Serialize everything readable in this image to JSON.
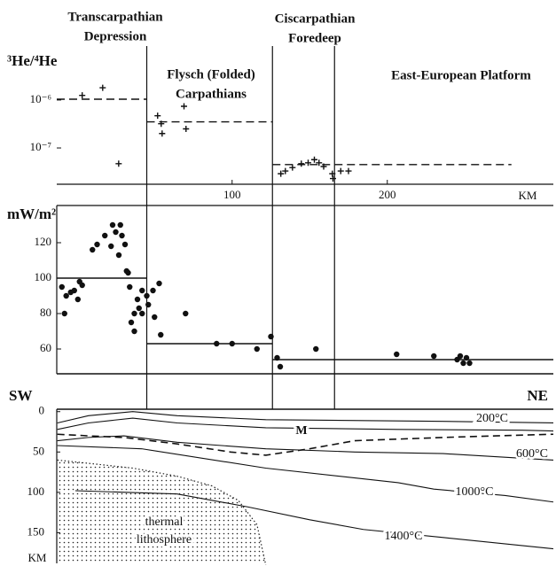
{
  "chart_data": [
    {
      "type": "scatter",
      "marker": "plus",
      "log_y": true,
      "color": "#111111",
      "y_label": "³He/⁴He",
      "x_unit": "KM",
      "xlim": [
        -13,
        307
      ],
      "ylim": [
        1.75e-08,
        9.5e-06
      ],
      "xticks": [
        100,
        200
      ],
      "yticks": [
        {
          "value": 1e-06,
          "label": "10⁻⁶"
        },
        {
          "value": 1e-07,
          "label": "10⁻⁷"
        }
      ],
      "x": [
        3.4,
        16.6,
        26.9,
        52,
        54.3,
        54.9,
        69,
        70.3,
        131.4,
        134.3,
        138.9,
        144.6,
        149,
        153,
        156,
        159,
        164.6,
        165,
        170,
        175
      ],
      "values": [
        1.25e-06,
        1.8e-06,
        4.7e-08,
        4.7e-07,
        3.2e-07,
        2e-07,
        7.4e-07,
        2.5e-07,
        2.9e-08,
        3.3e-08,
        3.9e-08,
        4.7e-08,
        4.9e-08,
        5.7e-08,
        4.9e-08,
        4.1e-08,
        2.9e-08,
        2.3e-08,
        3.3e-08,
        3.3e-08
      ],
      "means": [
        {
          "x": [
            -13,
            45
          ],
          "value": 1.04e-06
        },
        {
          "x": [
            45,
            126
          ],
          "value": 3.5e-07
        },
        {
          "x": [
            126,
            280
          ],
          "value": 4.5e-08
        }
      ]
    },
    {
      "type": "scatter",
      "marker": "dot",
      "color": "#111111",
      "y_label": "mW/m²",
      "xlim": [
        -13,
        307
      ],
      "ylim": [
        46,
        141
      ],
      "yticks": [
        60,
        80,
        100,
        120
      ],
      "x": [
        -9.7,
        -8,
        -6.9,
        -4,
        -1.7,
        0.6,
        1.7,
        3.4,
        10,
        13,
        18,
        22,
        23,
        25,
        27,
        28,
        29,
        31,
        32,
        33,
        34,
        37,
        37,
        35,
        39,
        40,
        42,
        42,
        45,
        46,
        49,
        50,
        53,
        54,
        70,
        90,
        100,
        116,
        125,
        129,
        131,
        154,
        206,
        230,
        245,
        247,
        249,
        251,
        253
      ],
      "values": [
        95,
        80,
        90,
        92,
        93,
        88,
        98,
        96,
        116,
        119,
        124,
        118,
        130,
        126,
        113,
        130,
        124,
        119,
        104,
        103,
        95,
        80,
        70,
        75,
        88,
        83,
        93,
        80,
        90,
        85,
        93,
        78,
        97,
        68,
        80,
        63,
        63,
        60,
        67,
        55,
        50,
        60,
        57,
        56,
        54,
        56,
        52,
        55,
        52
      ],
      "steps": [
        {
          "x": [
            -13,
            45
          ],
          "value": 100
        },
        {
          "x": [
            45,
            126
          ],
          "value": 63
        },
        {
          "x": [
            126,
            307
          ],
          "value": 54
        }
      ]
    },
    {
      "type": "line",
      "invert_y": true,
      "color": "#111111",
      "left_label": "SW",
      "right_label": "NE",
      "y_unit": "KM",
      "xlim": [
        -13,
        307
      ],
      "ylim": [
        -3,
        188
      ],
      "yticks": [
        0,
        50,
        100,
        150
      ],
      "series": [
        {
          "x": [
            -12.6,
            7.4,
            36,
            64.6,
            121.7,
            236,
            307
          ],
          "values": [
            14,
            5,
            0,
            5,
            10,
            12,
            14
          ]
        },
        {
          "name": "200°C",
          "x": [
            -12.6,
            7.4,
            36,
            64.6,
            121.7,
            207,
            287,
            307
          ],
          "values": [
            22,
            14,
            8,
            14,
            20,
            22,
            23,
            24
          ]
        },
        {
          "name": "600°C",
          "x": [
            -12.6,
            7.4,
            30.3,
            64.6,
            121.7,
            179,
            236,
            307
          ],
          "values": [
            36,
            32,
            30,
            38,
            46,
            50,
            52,
            60
          ]
        },
        {
          "name": "M",
          "dashed": true,
          "x": [
            -12.6,
            7.4,
            30.3,
            64.6,
            98.9,
            121.7,
            150,
            179,
            236,
            270,
            307
          ],
          "values": [
            28,
            30,
            32,
            40,
            50,
            54,
            46,
            36,
            32,
            30,
            28
          ]
        },
        {
          "name": "1000°C",
          "x": [
            -12.6,
            41.7,
            121.7,
            207,
            230,
            276,
            307
          ],
          "values": [
            42,
            46,
            70,
            88,
            96,
            104,
            112
          ]
        },
        {
          "name": "1400°C",
          "x": [
            -1,
            64.6,
            110,
            150,
            184.6,
            236,
            307
          ],
          "values": [
            98,
            102,
            118,
            134,
            146,
            156,
            170
          ]
        }
      ],
      "lithosphere": {
        "label_lines": [
          "thermal",
          "lithosphere"
        ],
        "x": [
          -12.6,
          7.4,
          36,
          64.6,
          87,
          104,
          116,
          121.7
        ],
        "values": [
          60,
          64,
          70,
          80,
          92,
          110,
          140,
          190
        ]
      }
    }
  ],
  "regions": [
    {
      "lines": [
        "Transcarpathian",
        "Depression"
      ]
    },
    {
      "lines": [
        "Flysch (Folded)",
        "Carpathians"
      ]
    },
    {
      "lines": [
        "Ciscarpathian",
        "Foredeep"
      ]
    },
    {
      "lines": [
        "East-European Platform"
      ]
    }
  ],
  "boundaries": [
    45,
    126,
    166
  ]
}
